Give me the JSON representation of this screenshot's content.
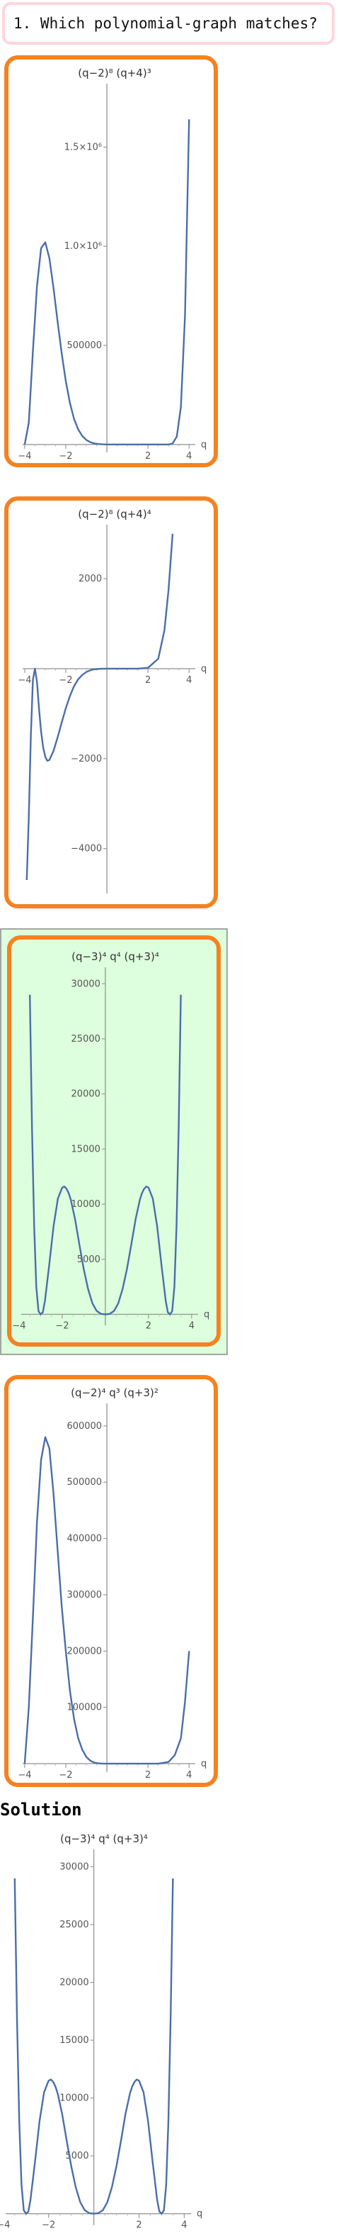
{
  "question": {
    "text": "1. Which polynomial-graph matches?"
  },
  "colors": {
    "accent_border": "#f58220",
    "correct_background": "#ddffdd",
    "correct_border": "#888888",
    "question_border": "#ffd6dc",
    "curve": "#4a6ea9"
  },
  "choices": [
    {
      "title": "(q−2)⁸ (q+4)³",
      "correct": false,
      "chart_data": {
        "type": "line",
        "x": [
          -4.0,
          -3.8,
          -3.6,
          -3.4,
          -3.2,
          -3.0,
          -2.8,
          -2.6,
          -2.4,
          -2.2,
          -2.0,
          -1.8,
          -1.6,
          -1.4,
          -1.2,
          -1.0,
          -0.8,
          -0.6,
          -0.4,
          -0.2,
          0.0,
          0.5,
          1.0,
          1.5,
          2.0,
          2.5,
          3.0,
          3.2,
          3.4,
          3.6,
          3.8,
          4.0
        ],
        "y": [
          0,
          110000,
          470000,
          800000,
          990000,
          1020000,
          940000,
          790000,
          620000,
          460000,
          320000,
          210000,
          130000,
          77000,
          43000,
          23000,
          11000,
          5000,
          2100,
          800,
          0,
          0,
          0,
          0,
          0,
          0,
          0,
          5000,
          40000,
          190000,
          650000,
          1640000
        ],
        "xlim": [
          -4.1,
          4.3
        ],
        "ylim": [
          -40000,
          1820000
        ],
        "x_ticks": [
          -4,
          -2,
          2,
          4
        ],
        "y_ticks": [
          500000,
          1000000,
          1500000
        ],
        "y_tick_labels": [
          "500000",
          "1.0×10⁶",
          "1.5×10⁶"
        ],
        "xlabel": "q"
      }
    },
    {
      "title": "(q−2)⁸ (q+4)⁴",
      "correct": false,
      "chart_data": {
        "type": "line",
        "x": [
          -3.9,
          -3.8,
          -3.7,
          -3.6,
          -3.5,
          -3.4,
          -3.3,
          -3.2,
          -3.1,
          -3.0,
          -2.9,
          -2.8,
          -2.6,
          -2.4,
          -2.2,
          -2.0,
          -1.8,
          -1.6,
          -1.4,
          -1.2,
          -1.0,
          -0.8,
          -0.6,
          -0.3,
          0.0,
          0.5,
          1.0,
          1.5,
          2.0,
          2.5,
          2.8,
          3.0,
          3.2
        ],
        "y": [
          -4700,
          -3300,
          -1500,
          -250,
          0,
          -300,
          -900,
          -1400,
          -1750,
          -1960,
          -2050,
          -2030,
          -1830,
          -1530,
          -1200,
          -880,
          -610,
          -390,
          -240,
          -140,
          -75,
          -35,
          -12,
          -2,
          0,
          0,
          0,
          0,
          20,
          220,
          850,
          1750,
          3000
        ],
        "xlim": [
          -4.1,
          4.3
        ],
        "ylim": [
          -5000,
          3200
        ],
        "x_ticks": [
          -4,
          -2,
          2,
          4
        ],
        "y_ticks": [
          -4000,
          -2000,
          2000
        ],
        "y_tick_labels": [
          "−4000",
          "−2000",
          "2000"
        ],
        "xlabel": "q"
      }
    },
    {
      "title": "(q−3)⁴ q⁴ (q+3)⁴",
      "correct": true,
      "chart_data": {
        "type": "line",
        "x": [
          -3.5,
          -3.4,
          -3.3,
          -3.2,
          -3.1,
          -3.0,
          -2.9,
          -2.8,
          -2.6,
          -2.4,
          -2.2,
          -2.0,
          -1.9,
          -1.8,
          -1.7,
          -1.6,
          -1.4,
          -1.2,
          -1.0,
          -0.8,
          -0.6,
          -0.4,
          -0.2,
          0.0,
          0.2,
          0.4,
          0.6,
          0.8,
          1.0,
          1.2,
          1.4,
          1.6,
          1.7,
          1.8,
          1.9,
          2.0,
          2.2,
          2.4,
          2.6,
          2.8,
          2.9,
          3.0,
          3.1,
          3.2,
          3.3,
          3.4,
          3.5
        ],
        "y": [
          29000,
          17000,
          8000,
          2500,
          300,
          0,
          180,
          1200,
          4500,
          8000,
          10500,
          11500,
          11600,
          11400,
          11000,
          10400,
          8600,
          6300,
          4100,
          2300,
          1000,
          300,
          40,
          0,
          40,
          300,
          1000,
          2300,
          4100,
          6300,
          8600,
          10400,
          11000,
          11400,
          11600,
          11500,
          10500,
          8000,
          4500,
          1200,
          180,
          0,
          300,
          2500,
          8000,
          17000,
          29000
        ],
        "xlim": [
          -3.9,
          4.3
        ],
        "ylim": [
          -1000,
          31500
        ],
        "x_ticks": [
          -4,
          -2,
          2,
          4
        ],
        "y_ticks": [
          5000,
          10000,
          15000,
          20000,
          25000,
          30000
        ],
        "y_tick_labels": [
          "5000",
          "10000",
          "15000",
          "20000",
          "25000",
          "30000"
        ],
        "xlabel": "q"
      }
    },
    {
      "title": "(q−2)⁴ q³ (q+3)²",
      "correct": false,
      "chart_data": {
        "type": "line",
        "x": [
          -4.0,
          -3.8,
          -3.6,
          -3.4,
          -3.2,
          -3.0,
          -2.8,
          -2.6,
          -2.4,
          -2.2,
          -2.0,
          -1.8,
          -1.6,
          -1.4,
          -1.2,
          -1.0,
          -0.8,
          -0.6,
          -0.4,
          -0.2,
          0.0,
          0.5,
          1.0,
          1.5,
          2.0,
          2.5,
          3.0,
          3.3,
          3.6,
          3.8,
          4.0
        ],
        "y": [
          0,
          100000,
          260000,
          430000,
          540000,
          580000,
          560000,
          480000,
          380000,
          280000,
          200000,
          130000,
          80000,
          46000,
          25000,
          12000,
          5000,
          1800,
          500,
          100,
          0,
          0,
          0,
          0,
          0,
          0,
          3000,
          15000,
          45000,
          110000,
          200000
        ],
        "xlim": [
          -4.1,
          4.3
        ],
        "ylim": [
          -15000,
          640000
        ],
        "x_ticks": [
          -4,
          -2,
          2,
          4
        ],
        "y_ticks": [
          100000,
          200000,
          300000,
          400000,
          500000,
          600000
        ],
        "y_tick_labels": [
          "100000",
          "200000",
          "300000",
          "400000",
          "500000",
          "600000"
        ],
        "xlabel": "q"
      }
    }
  ],
  "solution": {
    "heading": "Solution",
    "title": "(q−3)⁴ q⁴ (q+3)⁴",
    "chart_data": {
      "type": "line",
      "x": [
        -3.5,
        -3.4,
        -3.3,
        -3.2,
        -3.1,
        -3.0,
        -2.9,
        -2.8,
        -2.6,
        -2.4,
        -2.2,
        -2.0,
        -1.9,
        -1.8,
        -1.7,
        -1.6,
        -1.4,
        -1.2,
        -1.0,
        -0.8,
        -0.6,
        -0.4,
        -0.2,
        0.0,
        0.2,
        0.4,
        0.6,
        0.8,
        1.0,
        1.2,
        1.4,
        1.6,
        1.7,
        1.8,
        1.9,
        2.0,
        2.2,
        2.4,
        2.6,
        2.8,
        2.9,
        3.0,
        3.1,
        3.2,
        3.3,
        3.4,
        3.5
      ],
      "y": [
        29000,
        17000,
        8000,
        2500,
        300,
        0,
        180,
        1200,
        4500,
        8000,
        10500,
        11500,
        11600,
        11400,
        11000,
        10400,
        8600,
        6300,
        4100,
        2300,
        1000,
        300,
        40,
        0,
        40,
        300,
        1000,
        2300,
        4100,
        6300,
        8600,
        10400,
        11000,
        11400,
        11600,
        11500,
        10500,
        8000,
        4500,
        1200,
        180,
        0,
        300,
        2500,
        8000,
        17000,
        29000
      ],
      "xlim": [
        -3.9,
        4.3
      ],
      "ylim": [
        -1000,
        31500
      ],
      "x_ticks": [
        -4,
        -2,
        2,
        4
      ],
      "y_ticks": [
        5000,
        10000,
        15000,
        20000,
        25000,
        30000
      ],
      "y_tick_labels": [
        "5000",
        "10000",
        "15000",
        "20000",
        "25000",
        "30000"
      ],
      "xlabel": "q"
    }
  }
}
